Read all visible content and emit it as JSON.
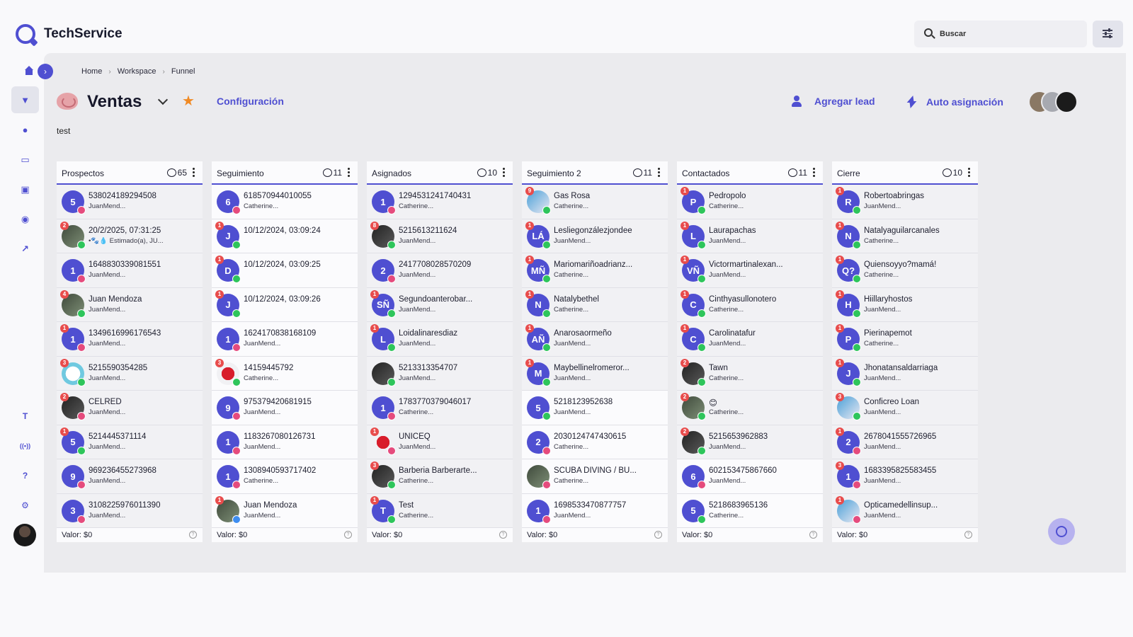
{
  "app": {
    "title": "TechService"
  },
  "search": {
    "placeholder": "Buscar"
  },
  "sidebar": {
    "items": [
      {
        "name": "home-icon",
        "glyph": "⌂"
      },
      {
        "name": "funnel-icon",
        "glyph": "▼"
      },
      {
        "name": "chat-icon",
        "glyph": "●"
      },
      {
        "name": "calendar-icon",
        "glyph": "▭"
      },
      {
        "name": "contacts-icon",
        "glyph": "▣"
      },
      {
        "name": "messages-icon",
        "glyph": "◉"
      },
      {
        "name": "analytics-icon",
        "glyph": "↗"
      }
    ],
    "bottom": [
      {
        "name": "text-icon",
        "glyph": "T"
      },
      {
        "name": "broadcast-icon",
        "glyph": "((•))"
      },
      {
        "name": "help-icon",
        "glyph": "?"
      },
      {
        "name": "settings-icon",
        "glyph": "⚙"
      }
    ]
  },
  "breadcrumb": [
    "Home",
    "Workspace",
    "Funnel"
  ],
  "board": {
    "title": "Ventas",
    "config_label": "Configuración",
    "add_lead_label": "Agregar lead",
    "auto_assign_label": "Auto asignación",
    "description": "test"
  },
  "footer_label": "Valor: $0",
  "columns": [
    {
      "title": "Prospectos",
      "count": "65",
      "cards": [
        {
          "initial": "5",
          "name": "538024189294508",
          "sub": "JuanMend...",
          "channel": "ig",
          "badge": ""
        },
        {
          "initial": "",
          "photo": "photo",
          "name": "20/2/2025, 07:31:25",
          "sub": "•🐾💧 Estimado(a), JU...",
          "channel": "wa",
          "badge": "2"
        },
        {
          "initial": "1",
          "name": "1648830339081551",
          "sub": "JuanMend...",
          "channel": "ig",
          "badge": ""
        },
        {
          "initial": "",
          "photo": "photo",
          "name": "Juan Mendoza",
          "sub": "JuanMend...",
          "channel": "wa",
          "badge": "4"
        },
        {
          "initial": "1",
          "name": "1349616996176543",
          "sub": "JuanMend...",
          "channel": "ig",
          "badge": "1"
        },
        {
          "initial": "",
          "photo": "photo3",
          "name": "5215590354285",
          "sub": "JuanMend...",
          "channel": "wa",
          "badge": "3"
        },
        {
          "initial": "",
          "photo": "photo2",
          "name": "CELRED",
          "sub": "JuanMend...",
          "channel": "ig",
          "badge": "2"
        },
        {
          "initial": "5",
          "name": "5214445371114",
          "sub": "JuanMend...",
          "channel": "wa",
          "badge": "1"
        },
        {
          "initial": "9",
          "name": "969236455273968",
          "sub": "JuanMend...",
          "channel": "ig",
          "badge": ""
        },
        {
          "initial": "3",
          "name": "3108225976011390",
          "sub": "JuanMend...",
          "channel": "ig",
          "badge": ""
        }
      ]
    },
    {
      "title": "Seguimiento",
      "count": "11",
      "cards": [
        {
          "initial": "6",
          "name": "618570944010055",
          "sub": "Catherine...",
          "channel": "ig",
          "badge": "",
          "white": true
        },
        {
          "initial": "J",
          "name": "10/12/2024, 03:09:24",
          "sub": "",
          "channel": "wa",
          "badge": "1",
          "white": true
        },
        {
          "initial": "D",
          "name": "10/12/2024, 03:09:25",
          "sub": "",
          "channel": "wa",
          "badge": "1",
          "white": true
        },
        {
          "initial": "J",
          "name": "10/12/2024, 03:09:26",
          "sub": "",
          "channel": "wa",
          "badge": "1",
          "white": true
        },
        {
          "initial": "1",
          "name": "1624170838168109",
          "sub": "JuanMend...",
          "channel": "ig",
          "badge": "",
          "white": true
        },
        {
          "initial": "",
          "photo": "photo4",
          "name": "14159445792",
          "sub": "Catherine...",
          "channel": "wa",
          "badge": "3",
          "white": true
        },
        {
          "initial": "9",
          "name": "975379420681915",
          "sub": "JuanMend...",
          "channel": "ig",
          "badge": "",
          "white": true
        },
        {
          "initial": "1",
          "name": "1183267080126731",
          "sub": "JuanMend...",
          "channel": "ig",
          "badge": "",
          "white": true
        },
        {
          "initial": "1",
          "name": "1308940593717402",
          "sub": "Catherine...",
          "channel": "ig",
          "badge": "",
          "white": true
        },
        {
          "initial": "",
          "photo": "photo",
          "name": "Juan Mendoza",
          "sub": "JuanMend...",
          "channel": "ms",
          "badge": "1",
          "white": true
        }
      ]
    },
    {
      "title": "Asignados",
      "count": "10",
      "cards": [
        {
          "initial": "1",
          "name": "1294531241740431",
          "sub": "Catherine...",
          "channel": "ig",
          "badge": ""
        },
        {
          "initial": "",
          "photo": "photo2",
          "name": "5215613211624",
          "sub": "JuanMend...",
          "channel": "wa",
          "badge": "8"
        },
        {
          "initial": "2",
          "name": "2417708028570209",
          "sub": "JuanMend...",
          "channel": "ig",
          "badge": ""
        },
        {
          "initial": "SÑ",
          "name": "Segundoanterobar...",
          "sub": "JuanMend...",
          "channel": "wa",
          "badge": "1"
        },
        {
          "initial": "L",
          "name": "Loidalinaresdiaz",
          "sub": "JuanMend...",
          "channel": "wa",
          "badge": "1"
        },
        {
          "initial": "",
          "photo": "photo2",
          "name": "5213313354707",
          "sub": "JuanMend...",
          "channel": "wa",
          "badge": ""
        },
        {
          "initial": "1",
          "name": "1783770379046017",
          "sub": "Catherine...",
          "channel": "ig",
          "badge": ""
        },
        {
          "initial": "",
          "photo": "photo4",
          "name": "UNICEQ",
          "sub": "JuanMend...",
          "channel": "ig",
          "badge": "1"
        },
        {
          "initial": "",
          "photo": "photo2",
          "name": "Barberia Barberarte...",
          "sub": "Catherine...",
          "channel": "wa",
          "badge": "3"
        },
        {
          "initial": "T",
          "name": "Test",
          "sub": "Catherine...",
          "channel": "wa",
          "badge": "1"
        }
      ]
    },
    {
      "title": "Seguimiento 2",
      "count": "11",
      "cards": [
        {
          "initial": "",
          "photo": "photo5",
          "name": "Gas Rosa",
          "sub": "Catherine...",
          "channel": "wa",
          "badge": "9"
        },
        {
          "initial": "LÁ",
          "name": "Lesliegonzálezjondee",
          "sub": "JuanMend...",
          "channel": "wa",
          "badge": "1"
        },
        {
          "initial": "MÑ",
          "name": "Mariomariñoadrianz...",
          "sub": "Catherine...",
          "channel": "wa",
          "badge": "1"
        },
        {
          "initial": "N",
          "name": "Natalybethel",
          "sub": "Catherine...",
          "channel": "wa",
          "badge": "1"
        },
        {
          "initial": "AÑ",
          "name": "Anarosaormeño",
          "sub": "JuanMend...",
          "channel": "wa",
          "badge": "1"
        },
        {
          "initial": "M",
          "name": "Maybellinelromeror...",
          "sub": "JuanMend...",
          "channel": "wa",
          "badge": "1"
        },
        {
          "initial": "5",
          "name": "5218123952638",
          "sub": "JuanMend...",
          "channel": "wa",
          "badge": "",
          "white": true
        },
        {
          "initial": "2",
          "name": "2030124747430615",
          "sub": "Catherine...",
          "channel": "ig",
          "badge": "",
          "white": true
        },
        {
          "initial": "",
          "photo": "photo",
          "name": "SCUBA DIVING / BU...",
          "sub": "Catherine...",
          "channel": "ig",
          "badge": "",
          "white": true
        },
        {
          "initial": "1",
          "name": "1698533470877757",
          "sub": "JuanMend...",
          "channel": "ig",
          "badge": "",
          "white": true
        }
      ]
    },
    {
      "title": "Contactados",
      "count": "11",
      "cards": [
        {
          "initial": "P",
          "name": "Pedropolo",
          "sub": "Catherine...",
          "channel": "wa",
          "badge": "1"
        },
        {
          "initial": "L",
          "name": "Laurapachas",
          "sub": "JuanMend...",
          "channel": "wa",
          "badge": "1"
        },
        {
          "initial": "VÑ",
          "name": "Victormartinalexan...",
          "sub": "JuanMend...",
          "channel": "wa",
          "badge": "1"
        },
        {
          "initial": "C",
          "name": "Cinthyasullonotero",
          "sub": "Catherine...",
          "channel": "wa",
          "badge": "1"
        },
        {
          "initial": "C",
          "name": "Carolinatafur",
          "sub": "JuanMend...",
          "channel": "wa",
          "badge": "1"
        },
        {
          "initial": "",
          "photo": "photo2",
          "name": "Tawn",
          "sub": "Catherine...",
          "channel": "wa",
          "badge": "2"
        },
        {
          "initial": "",
          "photo": "photo",
          "name": "😊",
          "sub": "Catherine...",
          "channel": "wa",
          "badge": "2"
        },
        {
          "initial": "",
          "photo": "photo2",
          "name": "5215653962883",
          "sub": "JuanMend...",
          "channel": "wa",
          "badge": "2"
        },
        {
          "initial": "6",
          "name": "602153475867660",
          "sub": "JuanMend...",
          "channel": "ig",
          "badge": "",
          "white": true
        },
        {
          "initial": "5",
          "name": "5218683965136",
          "sub": "Catherine...",
          "channel": "wa",
          "badge": "",
          "white": true
        }
      ]
    },
    {
      "title": "Cierre",
      "count": "10",
      "cards": [
        {
          "initial": "R",
          "name": "Robertoabringas",
          "sub": "JuanMend...",
          "channel": "wa",
          "badge": "1"
        },
        {
          "initial": "N",
          "name": "Natalyaguilarcanales",
          "sub": "Catherine...",
          "channel": "wa",
          "badge": "1"
        },
        {
          "initial": "Q?",
          "name": "Quiensoyyo?mamá!",
          "sub": "Catherine...",
          "channel": "wa",
          "badge": "1"
        },
        {
          "initial": "H",
          "name": "Hiillaryhostos",
          "sub": "JuanMend...",
          "channel": "wa",
          "badge": "1"
        },
        {
          "initial": "P",
          "name": "Pierinapemot",
          "sub": "Catherine...",
          "channel": "wa",
          "badge": "1"
        },
        {
          "initial": "J",
          "name": "Jhonatansaldarriaga",
          "sub": "JuanMend...",
          "channel": "wa",
          "badge": "1"
        },
        {
          "initial": "",
          "photo": "photo5",
          "name": "Conficreo Loan",
          "sub": "JuanMend...",
          "channel": "wa",
          "badge": "3"
        },
        {
          "initial": "2",
          "name": "2678041555726965",
          "sub": "JuanMend...",
          "channel": "ig",
          "badge": "1"
        },
        {
          "initial": "1",
          "name": "1683395825583455",
          "sub": "JuanMend...",
          "channel": "ig",
          "badge": "3"
        },
        {
          "initial": "",
          "photo": "photo5",
          "name": "Opticamedellinsup...",
          "sub": "JuanMend...",
          "channel": "ig",
          "badge": "1"
        }
      ]
    }
  ]
}
